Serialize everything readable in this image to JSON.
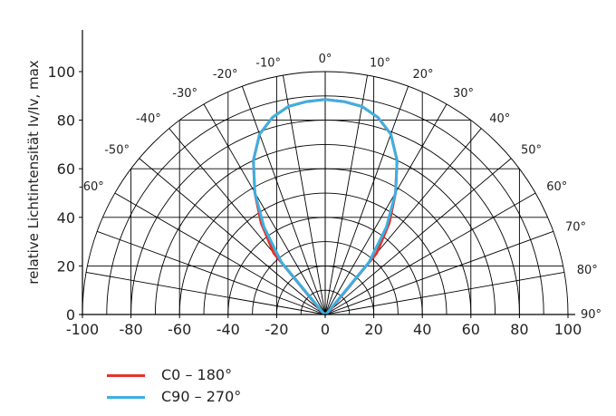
{
  "chart_data": {
    "type": "polar",
    "ylabel": "relative Lichtintensität Iv/Iv, max",
    "x_ticks": [
      "-100",
      "-80",
      "-60",
      "-40",
      "-20",
      "0",
      "20",
      "40",
      "60",
      "80",
      "100"
    ],
    "y_ticks": [
      "0",
      "20",
      "40",
      "60",
      "80",
      "100"
    ],
    "angle_labels": [
      {
        "deg": -90,
        "text": ""
      },
      {
        "deg": -80,
        "text": ""
      },
      {
        "deg": -70,
        "text": ""
      },
      {
        "deg": -60,
        "text": "-60°"
      },
      {
        "deg": -50,
        "text": "-50°"
      },
      {
        "deg": -40,
        "text": "-40°"
      },
      {
        "deg": -30,
        "text": "-30°"
      },
      {
        "deg": -20,
        "text": "-20°"
      },
      {
        "deg": -10,
        "text": "-10°"
      },
      {
        "deg": 0,
        "text": "0°"
      },
      {
        "deg": 10,
        "text": "10°"
      },
      {
        "deg": 20,
        "text": "20°"
      },
      {
        "deg": 30,
        "text": "30°"
      },
      {
        "deg": 40,
        "text": "40°"
      },
      {
        "deg": 50,
        "text": "50°"
      },
      {
        "deg": 60,
        "text": "60°"
      },
      {
        "deg": 70,
        "text": "70°"
      },
      {
        "deg": 80,
        "text": "80°"
      },
      {
        "deg": 90,
        "text": "90°"
      }
    ],
    "radial_max": 100,
    "radial_step": 10,
    "series": [
      {
        "name": "C0 – 180°",
        "color": "#e8312a",
        "angles": [
          -90,
          -80,
          -70,
          -60,
          -50,
          -40,
          -35,
          -30,
          -25,
          -20,
          -15,
          -10,
          -5,
          0,
          5,
          10,
          15,
          20,
          25,
          30,
          35,
          40,
          50,
          60,
          70,
          80,
          90
        ],
        "values": [
          0,
          0,
          0,
          0,
          2,
          33,
          46,
          58,
          70,
          79,
          84,
          87,
          88,
          88.5,
          88,
          87,
          84,
          79,
          70,
          58,
          46,
          33,
          2,
          0,
          0,
          0,
          0
        ]
      },
      {
        "name": "C90 – 270°",
        "color": "#3bb0e3",
        "angles": [
          -90,
          -80,
          -70,
          -60,
          -50,
          -40,
          -35,
          -30,
          -25,
          -20,
          -15,
          -10,
          -5,
          0,
          5,
          10,
          15,
          20,
          25,
          30,
          35,
          40,
          50,
          60,
          70,
          80,
          90
        ],
        "values": [
          0,
          0,
          0,
          0,
          1,
          28,
          44,
          58,
          70,
          79,
          84,
          87,
          88,
          88.5,
          88,
          87,
          84,
          79,
          70,
          58,
          44,
          28,
          1,
          0,
          0,
          0,
          0
        ]
      }
    ],
    "legend": [
      {
        "label": "C0 – 180°",
        "color": "#e8312a"
      },
      {
        "label": "C90 – 270°",
        "color": "#3bb0e3"
      }
    ]
  }
}
